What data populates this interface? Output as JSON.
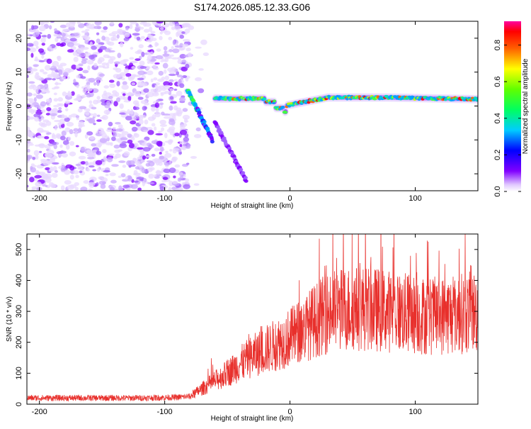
{
  "chart_data": [
    {
      "type": "heatmap",
      "title": "S174.2026.085.12.33.G06",
      "xlabel": "Height of straight line (km)",
      "ylabel": "Frequency (Hz)",
      "xlim": [
        -210,
        150
      ],
      "ylim": [
        -25,
        25
      ],
      "xticks": [
        -200,
        -100,
        0,
        100
      ],
      "yticks": [
        -20,
        -10,
        0,
        10,
        20
      ],
      "colorbar": {
        "label": "Normalized spectral amplitude",
        "range": [
          0.0,
          0.93
        ],
        "ticks": [
          0.0,
          0.2,
          0.4,
          0.6,
          0.8
        ],
        "tick_labels": [
          "0.0",
          "0.2",
          "0.4",
          "0.6",
          "0.8"
        ]
      },
      "features": {
        "noise_region_x": [
          -210,
          -80
        ],
        "main_line": [
          [
            -5,
            0
          ],
          [
            30,
            2.5
          ],
          [
            80,
            2.5
          ],
          [
            150,
            2
          ]
        ],
        "descending_streaks": [
          [
            -82,
            5,
            -62,
            -10
          ],
          [
            -60,
            -5,
            -35,
            -22
          ]
        ]
      }
    },
    {
      "type": "line",
      "xlabel": "Height of straight line (km)",
      "ylabel": "SNR (10 * v/v)",
      "xlim": [
        -210,
        150
      ],
      "ylim": [
        0,
        550
      ],
      "xticks": [
        -200,
        -100,
        0,
        100
      ],
      "yticks": [
        0,
        100,
        200,
        300,
        400,
        500
      ],
      "color": "#e8302c",
      "series": [
        {
          "name": "SNR",
          "x": [
            -210,
            -180,
            -150,
            -120,
            -90,
            -80,
            -70,
            -60,
            -50,
            -40,
            -30,
            -20,
            -10,
            0,
            10,
            20,
            30,
            40,
            50,
            60,
            70,
            80,
            90,
            100,
            110,
            120,
            130,
            140,
            150
          ],
          "values": [
            20,
            20,
            20,
            20,
            22,
            25,
            50,
            75,
            100,
            130,
            155,
            175,
            195,
            215,
            240,
            270,
            295,
            305,
            310,
            310,
            305,
            300,
            295,
            290,
            285,
            285,
            290,
            295,
            300
          ]
        }
      ]
    }
  ]
}
